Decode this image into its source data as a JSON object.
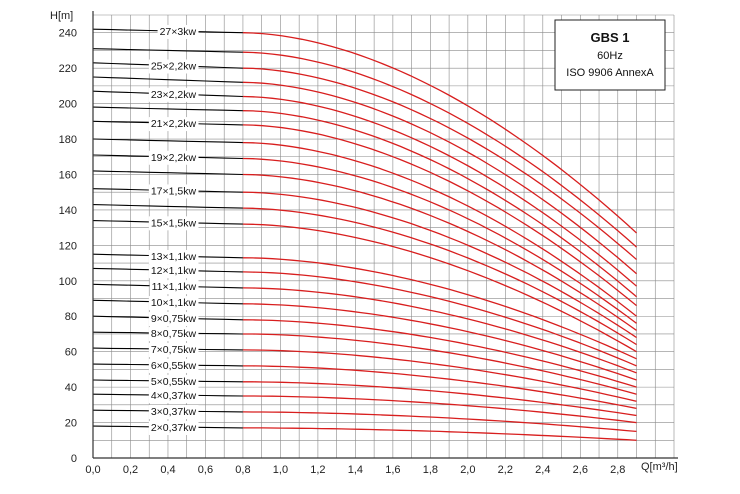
{
  "chart_data": {
    "type": "line",
    "title": "GBS 1",
    "subtitle_lines": [
      "60Hz",
      "ISO 9906 AnnexA"
    ],
    "xlabel": "Q[m³/h]",
    "ylabel": "H[m]",
    "xlim": [
      0,
      3.1
    ],
    "ylim": [
      0,
      250
    ],
    "x_ticks": [
      "0,0",
      "0,2",
      "0,4",
      "0,6",
      "0,8",
      "1,0",
      "1,2",
      "1,4",
      "1,6",
      "1,8",
      "2,0",
      "2,2",
      "2,4",
      "2,6",
      "2,8"
    ],
    "y_ticks": [
      "0",
      "20",
      "40",
      "60",
      "80",
      "100",
      "120",
      "140",
      "160",
      "180",
      "200",
      "220",
      "240"
    ],
    "grid": true,
    "legend_position": "top-right",
    "colors": {
      "low_flow": "#000000",
      "operating": "#d81e1e",
      "grid": "#8a8a8a"
    },
    "operating_range_start_q": 0.8,
    "series": [
      {
        "name": "27×3kw",
        "h_at_q0": 242,
        "h_at_q08": 240,
        "h_at_qmax": 127
      },
      {
        "name": "",
        "h_at_q0": 231,
        "h_at_q08": 229,
        "h_at_qmax": 119
      },
      {
        "name": "25×2,2kw",
        "h_at_q0": 223,
        "h_at_q08": 220,
        "h_at_qmax": 112
      },
      {
        "name": "",
        "h_at_q0": 215,
        "h_at_q08": 212,
        "h_at_qmax": 104
      },
      {
        "name": "23×2,2kw",
        "h_at_q0": 207,
        "h_at_q08": 204,
        "h_at_qmax": 97
      },
      {
        "name": "",
        "h_at_q0": 198,
        "h_at_q08": 196,
        "h_at_qmax": 91
      },
      {
        "name": "21×2,2kw",
        "h_at_q0": 190,
        "h_at_q08": 188,
        "h_at_qmax": 86
      },
      {
        "name": "",
        "h_at_q0": 180,
        "h_at_q08": 178,
        "h_at_qmax": 80
      },
      {
        "name": "19×2,2kw",
        "h_at_q0": 171,
        "h_at_q08": 169,
        "h_at_qmax": 76
      },
      {
        "name": "",
        "h_at_q0": 162,
        "h_at_q08": 160,
        "h_at_qmax": 72
      },
      {
        "name": "17×1,5kw",
        "h_at_q0": 152,
        "h_at_q08": 150,
        "h_at_qmax": 68
      },
      {
        "name": "",
        "h_at_q0": 143,
        "h_at_q08": 141,
        "h_at_qmax": 64
      },
      {
        "name": "15×1,5kw",
        "h_at_q0": 134,
        "h_at_q08": 132,
        "h_at_qmax": 60
      },
      {
        "name": "13×1,1kw",
        "h_at_q0": 115,
        "h_at_q08": 113,
        "h_at_qmax": 56
      },
      {
        "name": "12×1,1kw",
        "h_at_q0": 107,
        "h_at_q08": 105,
        "h_at_qmax": 52
      },
      {
        "name": "11×1,1kw",
        "h_at_q0": 98,
        "h_at_q08": 96,
        "h_at_qmax": 48
      },
      {
        "name": "10×1,1kw",
        "h_at_q0": 89,
        "h_at_q08": 87,
        "h_at_qmax": 44
      },
      {
        "name": "9×0,75kw",
        "h_at_q0": 80,
        "h_at_q08": 78,
        "h_at_qmax": 40
      },
      {
        "name": "8×0,75kw",
        "h_at_q0": 71,
        "h_at_q08": 70,
        "h_at_qmax": 36
      },
      {
        "name": "7×0,75kw",
        "h_at_q0": 62,
        "h_at_q08": 61,
        "h_at_qmax": 32
      },
      {
        "name": "6×0,55kw",
        "h_at_q0": 53,
        "h_at_q08": 52,
        "h_at_qmax": 28
      },
      {
        "name": "5×0,55kw",
        "h_at_q0": 44,
        "h_at_q08": 43,
        "h_at_qmax": 24
      },
      {
        "name": "4×0,37kw",
        "h_at_q0": 36,
        "h_at_q08": 35,
        "h_at_qmax": 20
      },
      {
        "name": "3×0,37kw",
        "h_at_q0": 27,
        "h_at_q08": 26,
        "h_at_qmax": 15
      },
      {
        "name": "2×0,37kw",
        "h_at_q0": 18,
        "h_at_q08": 17,
        "h_at_qmax": 10
      }
    ],
    "q_max": 2.9
  }
}
